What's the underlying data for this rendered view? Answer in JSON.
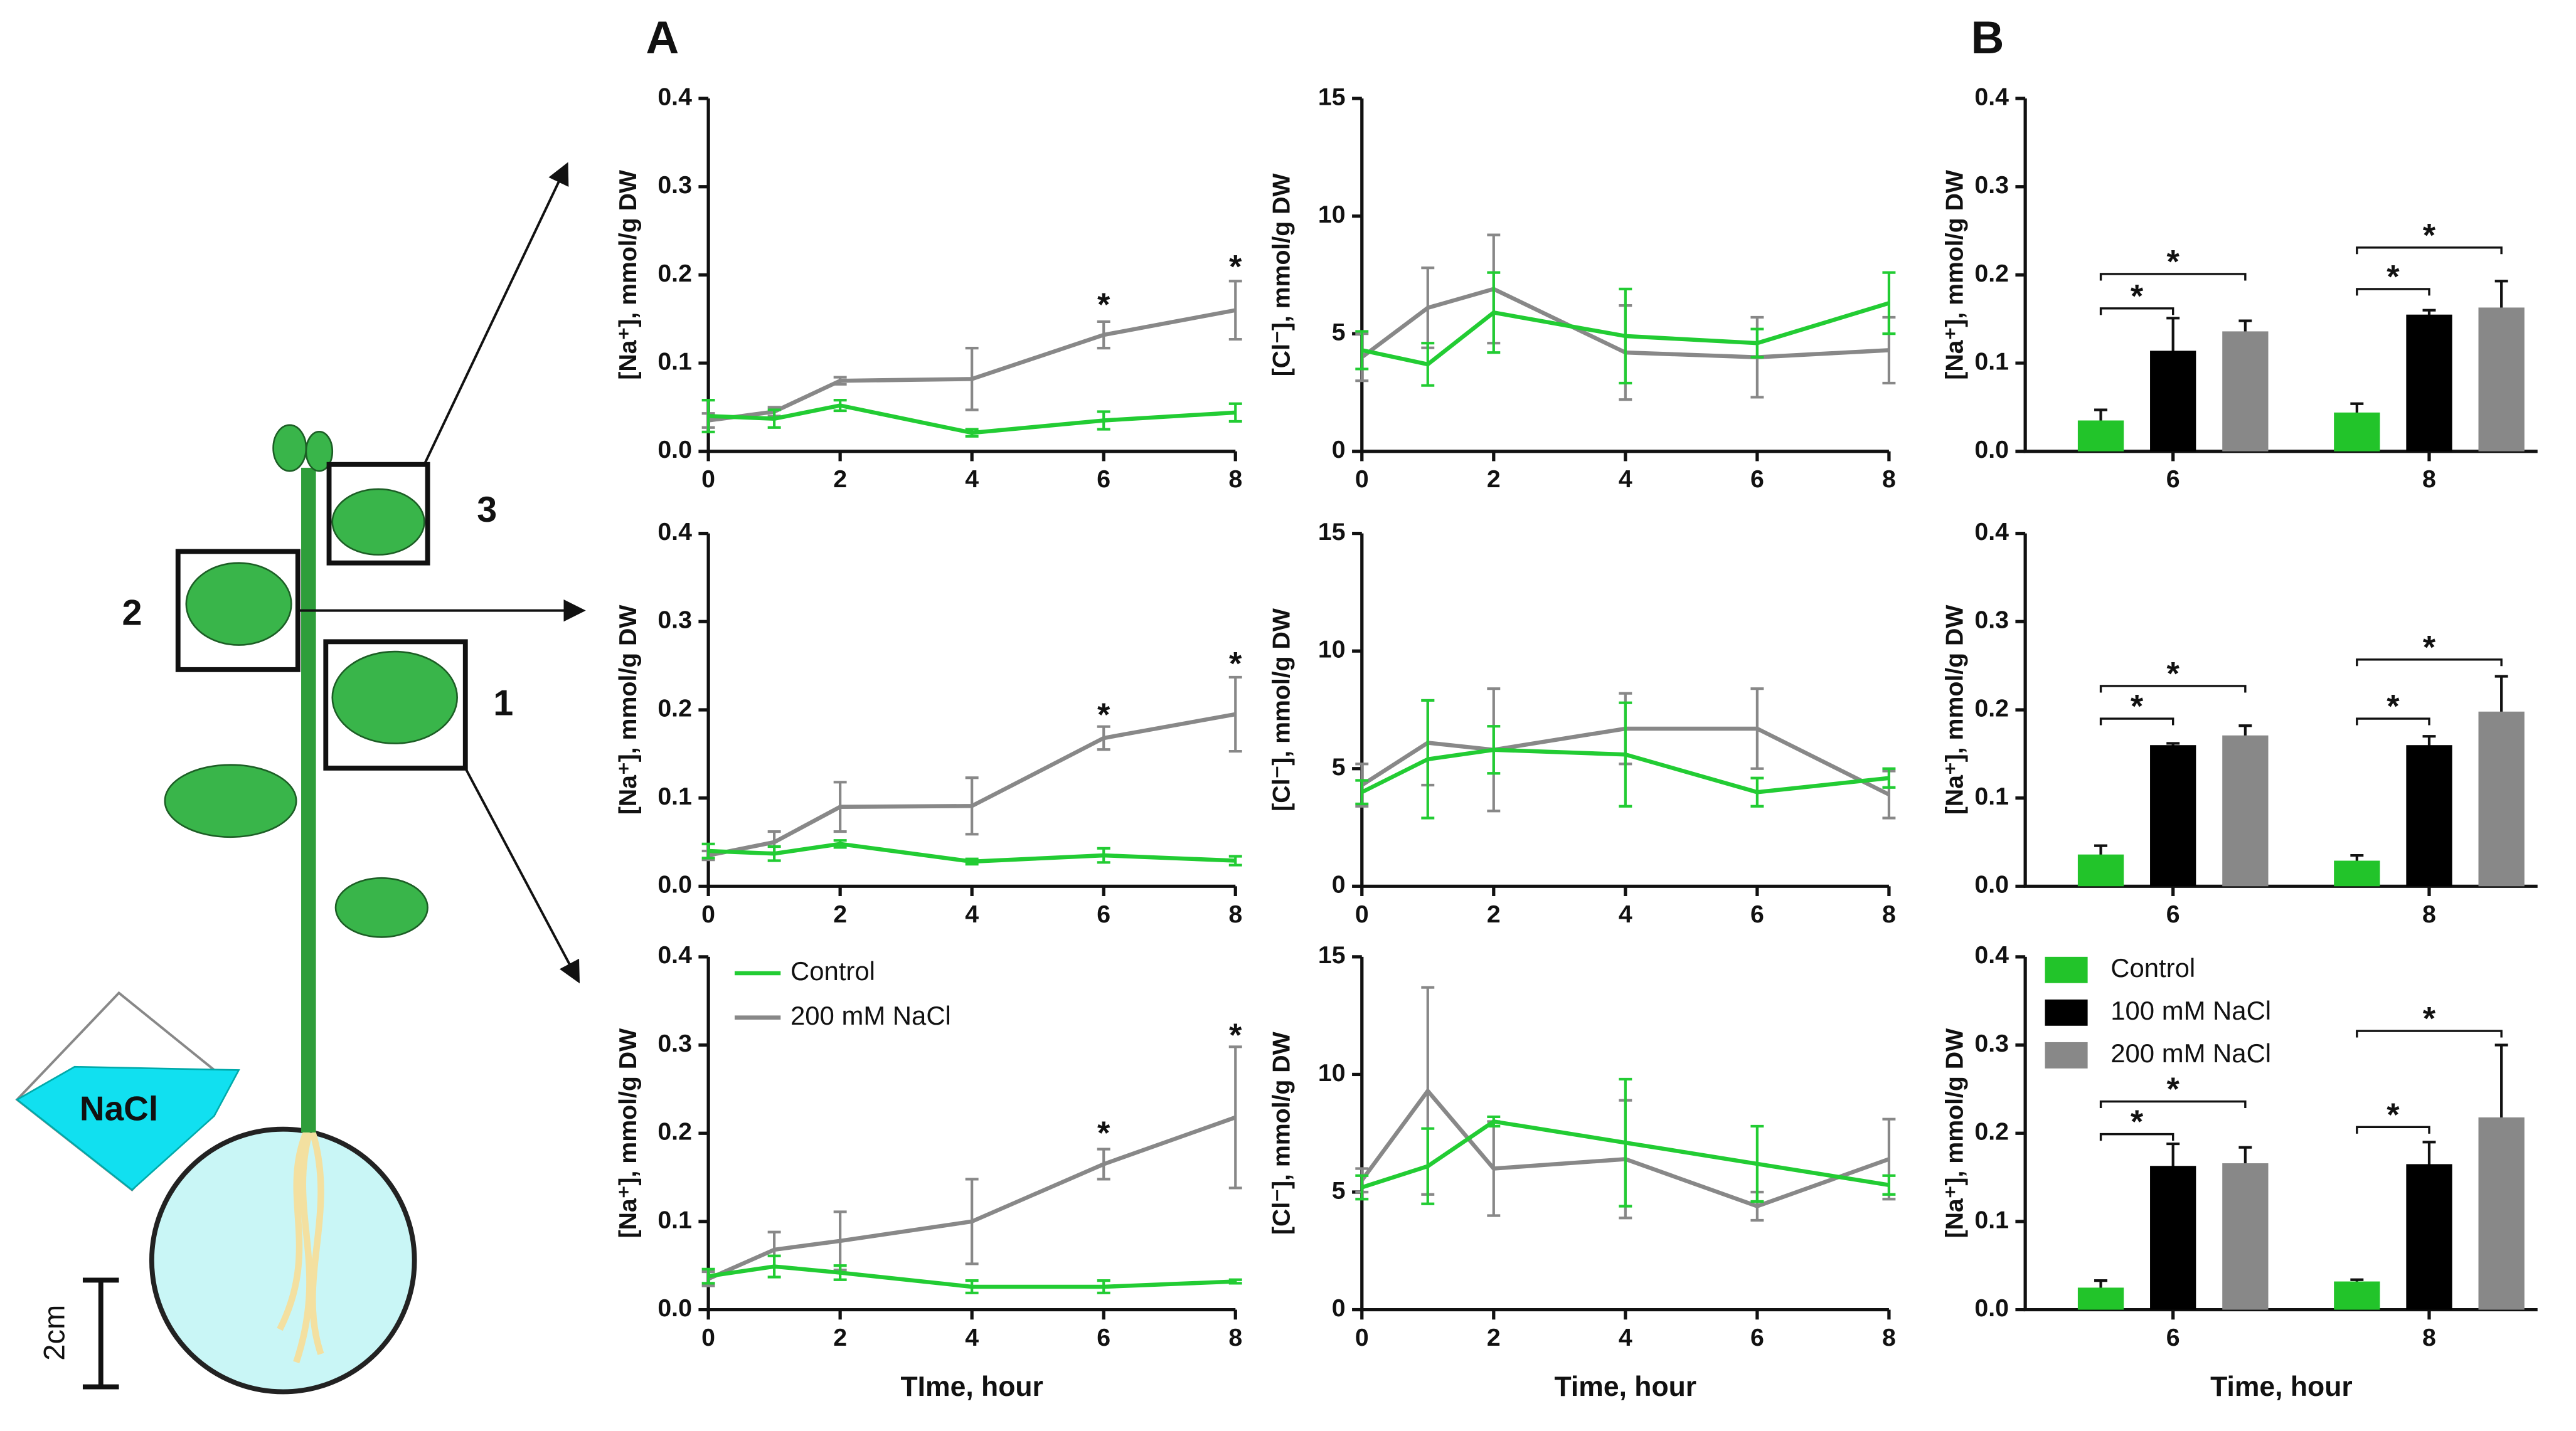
{
  "panel_labels": [
    "A",
    "B"
  ],
  "diagram": {
    "labels": [
      "1",
      "2",
      "3"
    ],
    "reagent": "NaCl",
    "scale": "2cm"
  },
  "chart_data": [
    {
      "type": "line",
      "ylabel": "[Na⁺], mmol/g DW",
      "x": [
        0,
        1,
        2,
        4,
        6,
        8
      ],
      "xlim": [
        0,
        8
      ],
      "xticks": [
        0,
        2,
        4,
        6,
        8
      ],
      "ylim": [
        0,
        0.4
      ],
      "yticks": [
        {
          "value": 0,
          "label": "0.0"
        },
        0.1,
        0.2,
        0.3,
        0.4
      ],
      "series": [
        {
          "color": "#22cc33",
          "values": [
            0.04,
            0.037,
            0.052,
            0.021,
            0.035,
            0.044
          ],
          "errors": [
            0.018,
            0.01,
            0.006,
            0.004,
            0.01,
            0.01
          ]
        },
        {
          "color": "#888888",
          "values": [
            0.035,
            0.045,
            0.08,
            0.082,
            0.132,
            0.16
          ],
          "errors": [
            0.008,
            0.005,
            0.004,
            0.035,
            0.015,
            0.033
          ]
        }
      ],
      "annotations": [
        {
          "text": "*",
          "x": 6,
          "y": 0.171
        },
        {
          "text": "*",
          "x": 8,
          "y": 0.214
        }
      ]
    },
    {
      "type": "line",
      "ylabel": "[Cl⁻], mmol/g DW",
      "x": [
        0,
        1,
        2,
        4,
        6,
        8
      ],
      "xlim": [
        0,
        8
      ],
      "xticks": [
        0,
        2,
        4,
        6,
        8
      ],
      "ylim": [
        0,
        15
      ],
      "yticks": [
        0,
        5,
        10,
        15
      ],
      "series": [
        {
          "color": "#22cc33",
          "values": [
            4.3,
            3.7,
            5.9,
            4.9,
            4.6,
            6.3
          ],
          "errors": [
            0.8,
            0.9,
            1.7,
            2.0,
            0.6,
            1.3
          ]
        },
        {
          "color": "#888888",
          "values": [
            4.0,
            6.1,
            6.9,
            4.2,
            4.0,
            4.3
          ],
          "errors": [
            1.0,
            1.7,
            2.3,
            2.0,
            1.7,
            1.4
          ]
        }
      ]
    },
    {
      "type": "bar",
      "ylabel": "[Na⁺], mmol/g DW",
      "categories": [
        "6",
        "8"
      ],
      "ylim": [
        0,
        0.4
      ],
      "yticks": [
        {
          "value": 0,
          "label": "0.0"
        },
        0.1,
        0.2,
        0.3,
        0.4
      ],
      "series": [
        {
          "color": "#22c42a",
          "values": [
            0.035,
            0.044
          ],
          "errors": [
            0.012,
            0.01
          ]
        },
        {
          "color": "#000000",
          "values": [
            0.114,
            0.155
          ],
          "errors": [
            0.037,
            0.005
          ]
        },
        {
          "color": "#888888",
          "values": [
            0.136,
            0.163
          ],
          "errors": [
            0.012,
            0.03
          ]
        }
      ],
      "annotations": [
        {
          "text": "*",
          "category": 0,
          "from": 0,
          "to": 1,
          "y": 0.162
        },
        {
          "text": "*",
          "category": 0,
          "from": 0,
          "to": 2,
          "y": 0.201
        },
        {
          "text": "*",
          "category": 1,
          "from": 0,
          "to": 1,
          "y": 0.184
        },
        {
          "text": "*",
          "category": 1,
          "from": 0,
          "to": 2,
          "y": 0.231
        }
      ]
    },
    {
      "type": "line",
      "ylabel": "[Na⁺], mmol/g DW",
      "x": [
        0,
        1,
        2,
        4,
        6,
        8
      ],
      "xlim": [
        0,
        8
      ],
      "xticks": [
        0,
        2,
        4,
        6,
        8
      ],
      "ylim": [
        0,
        0.4
      ],
      "yticks": [
        {
          "value": 0,
          "label": "0.0"
        },
        0.1,
        0.2,
        0.3,
        0.4
      ],
      "series": [
        {
          "color": "#22cc33",
          "values": [
            0.04,
            0.037,
            0.048,
            0.028,
            0.035,
            0.029
          ],
          "errors": [
            0.008,
            0.008,
            0.004,
            0.003,
            0.008,
            0.005
          ]
        },
        {
          "color": "#888888",
          "values": [
            0.035,
            0.05,
            0.09,
            0.091,
            0.168,
            0.195
          ],
          "errors": [
            0.005,
            0.012,
            0.028,
            0.032,
            0.013,
            0.042
          ]
        }
      ],
      "annotations": [
        {
          "text": "*",
          "x": 6,
          "y": 0.199
        },
        {
          "text": "*",
          "x": 8,
          "y": 0.257
        }
      ]
    },
    {
      "type": "line",
      "ylabel": "[Cl⁻], mmol/g DW",
      "x": [
        0,
        1,
        2,
        4,
        6,
        8
      ],
      "xlim": [
        0,
        8
      ],
      "xticks": [
        0,
        2,
        4,
        6,
        8
      ],
      "ylim": [
        0,
        15
      ],
      "yticks": [
        0,
        5,
        10,
        15
      ],
      "series": [
        {
          "color": "#22cc33",
          "values": [
            4.0,
            5.4,
            5.8,
            5.6,
            4.0,
            4.6
          ],
          "errors": [
            0.5,
            2.5,
            1.0,
            2.2,
            0.6,
            0.4
          ]
        },
        {
          "color": "#888888",
          "values": [
            4.3,
            6.1,
            5.8,
            6.7,
            6.7,
            3.9
          ],
          "errors": [
            0.9,
            1.8,
            2.6,
            1.5,
            1.7,
            1.0
          ]
        }
      ]
    },
    {
      "type": "bar",
      "ylabel": "[Na⁺], mmol/g DW",
      "categories": [
        "6",
        "8"
      ],
      "ylim": [
        0,
        0.4
      ],
      "yticks": [
        {
          "value": 0,
          "label": "0.0"
        },
        0.1,
        0.2,
        0.3,
        0.4
      ],
      "series": [
        {
          "color": "#22c42a",
          "values": [
            0.036,
            0.029
          ],
          "errors": [
            0.01,
            0.006
          ]
        },
        {
          "color": "#000000",
          "values": [
            0.16,
            0.16
          ],
          "errors": [
            0.002,
            0.01
          ]
        },
        {
          "color": "#888888",
          "values": [
            0.171,
            0.198
          ],
          "errors": [
            0.011,
            0.04
          ]
        }
      ],
      "annotations": [
        {
          "text": "*",
          "category": 0,
          "from": 0,
          "to": 1,
          "y": 0.19
        },
        {
          "text": "*",
          "category": 0,
          "from": 0,
          "to": 2,
          "y": 0.227
        },
        {
          "text": "*",
          "category": 1,
          "from": 0,
          "to": 1,
          "y": 0.19
        },
        {
          "text": "*",
          "category": 1,
          "from": 0,
          "to": 2,
          "y": 0.257
        }
      ]
    },
    {
      "type": "line",
      "ylabel": "[Na⁺], mmol/g DW",
      "xlabel": "TIme, hour",
      "legend": "upper left",
      "x": [
        0,
        1,
        2,
        4,
        6,
        8
      ],
      "xlim": [
        0,
        8
      ],
      "xticks": [
        0,
        2,
        4,
        6,
        8
      ],
      "ylim": [
        0,
        0.4
      ],
      "yticks": [
        {
          "value": 0,
          "label": "0.0"
        },
        0.1,
        0.2,
        0.3,
        0.4
      ],
      "series": [
        {
          "name": "Control",
          "color": "#22cc33",
          "values": [
            0.038,
            0.049,
            0.042,
            0.026,
            0.026,
            0.032
          ],
          "errors": [
            0.008,
            0.012,
            0.008,
            0.007,
            0.007,
            0.002
          ]
        },
        {
          "name": "200 mM NaCl",
          "color": "#888888",
          "values": [
            0.035,
            0.068,
            0.078,
            0.1,
            0.165,
            0.218
          ],
          "errors": [
            0.008,
            0.02,
            0.033,
            0.048,
            0.017,
            0.08
          ]
        }
      ],
      "annotations": [
        {
          "text": "*",
          "x": 6,
          "y": 0.205
        },
        {
          "text": "*",
          "x": 8,
          "y": 0.316
        }
      ]
    },
    {
      "type": "line",
      "ylabel": "[Cl⁻], mmol/g DW",
      "xlabel": "Time, hour",
      "x": [
        0,
        1,
        2,
        4,
        6,
        8
      ],
      "xlim": [
        0,
        8
      ],
      "xticks": [
        0,
        2,
        4,
        6,
        8
      ],
      "ylim": [
        0,
        15
      ],
      "yticks": [
        0,
        5,
        10,
        15
      ],
      "series": [
        {
          "color": "#22cc33",
          "values": [
            5.2,
            6.1,
            8.0,
            7.1,
            6.2,
            5.3
          ],
          "errors": [
            0.5,
            1.6,
            0.2,
            2.7,
            1.6,
            0.4
          ]
        },
        {
          "color": "#888888",
          "values": [
            5.5,
            9.3,
            6.0,
            6.4,
            4.4,
            6.4
          ],
          "errors": [
            0.5,
            4.4,
            2.0,
            2.5,
            0.6,
            1.7
          ]
        }
      ]
    },
    {
      "type": "bar",
      "ylabel": "[Na⁺], mmol/g DW",
      "xlabel": "Time, hour",
      "legend": "upper left",
      "categories": [
        "6",
        "8"
      ],
      "ylim": [
        0,
        0.4
      ],
      "yticks": [
        {
          "value": 0,
          "label": "0.0"
        },
        0.1,
        0.2,
        0.3,
        0.4
      ],
      "series": [
        {
          "name": "Control",
          "color": "#22c42a",
          "values": [
            0.025,
            0.032
          ],
          "errors": [
            0.008,
            0.002
          ]
        },
        {
          "name": "100 mM NaCl",
          "color": "#000000",
          "values": [
            0.163,
            0.165
          ],
          "errors": [
            0.025,
            0.025
          ]
        },
        {
          "name": "200 mM NaCl",
          "color": "#888888",
          "values": [
            0.166,
            0.218
          ],
          "errors": [
            0.018,
            0.082
          ]
        }
      ],
      "annotations": [
        {
          "text": "*",
          "category": 0,
          "from": 0,
          "to": 1,
          "y": 0.199
        },
        {
          "text": "*",
          "category": 0,
          "from": 0,
          "to": 2,
          "y": 0.236
        },
        {
          "text": "*",
          "category": 1,
          "from": 0,
          "to": 1,
          "y": 0.207
        },
        {
          "text": "*",
          "category": 1,
          "from": 0,
          "to": 2,
          "y": 0.316
        }
      ]
    }
  ]
}
